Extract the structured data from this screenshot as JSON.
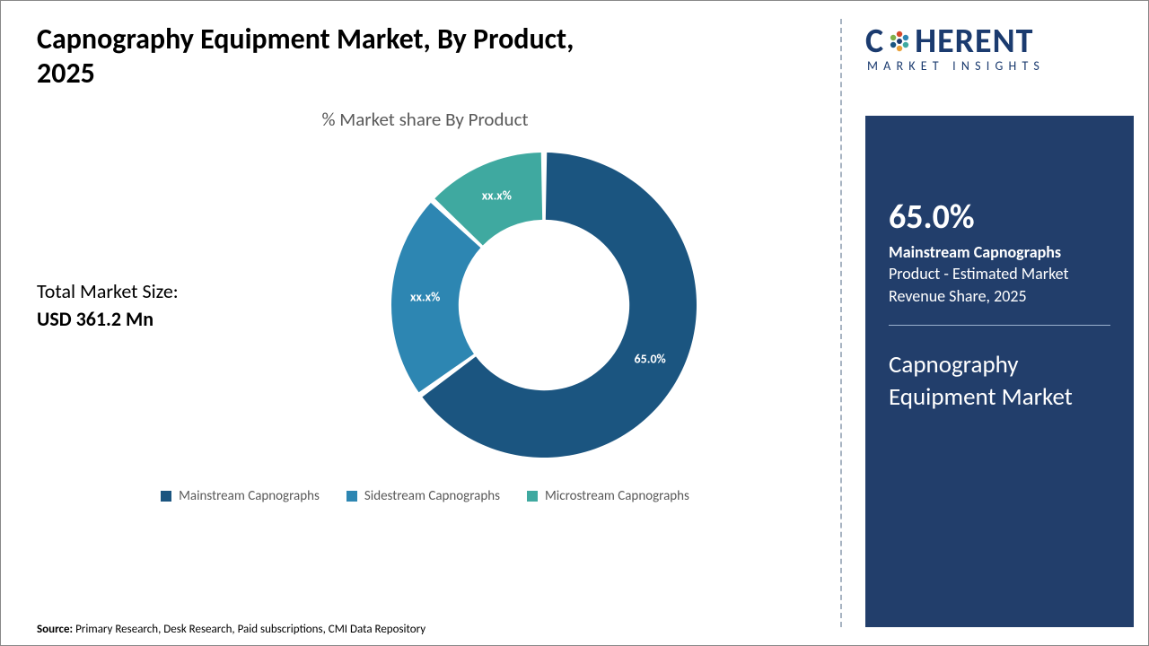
{
  "title": "Capnography Equipment Market, By Product, 2025",
  "subtitle": "% Market share By Product",
  "market_size": {
    "label": "Total Market Size:",
    "value": "USD 361.2 Mn"
  },
  "chart": {
    "type": "donut",
    "inner_radius_ratio": 0.56,
    "background_color": "#ffffff",
    "slices": [
      {
        "name": "Mainstream Capnographs",
        "value": 65.0,
        "label": "65.0%",
        "color": "#1b5580"
      },
      {
        "name": "Sidestream Capnographs",
        "value": 22.0,
        "label": "xx.x%",
        "color": "#2d86b2"
      },
      {
        "name": "Microstream Capnographs",
        "value": 13.0,
        "label": "xx.x%",
        "color": "#3fa9a0"
      }
    ],
    "gap_color": "#ffffff",
    "gap_deg": 2.2,
    "start_angle_deg": -90,
    "label_fontsize": 14,
    "label_color": "#ffffff"
  },
  "legend": {
    "items": [
      {
        "label": "Mainstream Capnographs",
        "color": "#1b5580"
      },
      {
        "label": "Sidestream Capnographs",
        "color": "#2d86b2"
      },
      {
        "label": "Microstream Capnographs",
        "color": "#3fa9a0"
      }
    ],
    "marker": "square",
    "marker_size": 12,
    "fontsize": 15,
    "text_color": "#595959"
  },
  "source": {
    "prefix": "Source:",
    "text": "Primary Research, Desk Research, Paid subscriptions, CMI Data Repository"
  },
  "logo": {
    "main_left": "C",
    "main_right": "HERENT",
    "sub": "MARKET INSIGHTS",
    "text_color": "#1b3b6f",
    "dot_colors": [
      "#d64a2b",
      "#2d86b2",
      "#3fa9a0",
      "#e8a13a",
      "#1b5580",
      "#7fb04a"
    ]
  },
  "side_panel": {
    "bg_color": "#223e6b",
    "pct": "65.0%",
    "desc_bold": "Mainstream Capnographs",
    "desc_rest": " Product - Estimated Market Revenue Share, 2025",
    "market_name": "Capnography Equipment Market"
  }
}
